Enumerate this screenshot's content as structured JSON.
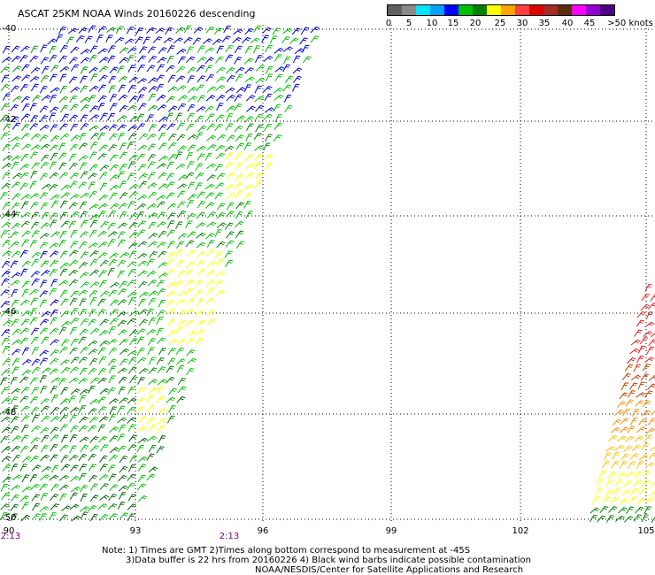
{
  "title": "ASCAT 25KM NOAA Winds 20160226 descending",
  "colorbar": {
    "colors": [
      "#606060",
      "#8a8a8a",
      "#00e5ff",
      "#00a0ff",
      "#0000ff",
      "#00c000",
      "#008000",
      "#ffff00",
      "#ffa500",
      "#ff4040",
      "#e00000",
      "#a52a2a",
      "#5a2d0c",
      "#ff00ff",
      "#9400d3",
      "#4b0082"
    ],
    "labels": [
      "0",
      "5",
      "10",
      "15",
      "20",
      "25",
      "30",
      "35",
      "40",
      "45",
      ">50 knots"
    ]
  },
  "map": {
    "lat_labels": [
      "-40",
      "-42",
      "-44",
      "-46",
      "-48",
      "-50"
    ],
    "lon_labels": [
      "90",
      "93",
      "96",
      "99",
      "102",
      "105"
    ],
    "time_labels": [
      "2:13",
      "2:13"
    ]
  },
  "notes": {
    "line1": "Note: 1) Times are GMT 2)Times along bottom correspond to measurement at -45S",
    "line2": "3)Data buffer is 22 hrs from 20160226 4) Black wind barbs indicate possible contamination",
    "line3": "NOAA/NESDIS/Center for Satellite Applications and Research"
  }
}
